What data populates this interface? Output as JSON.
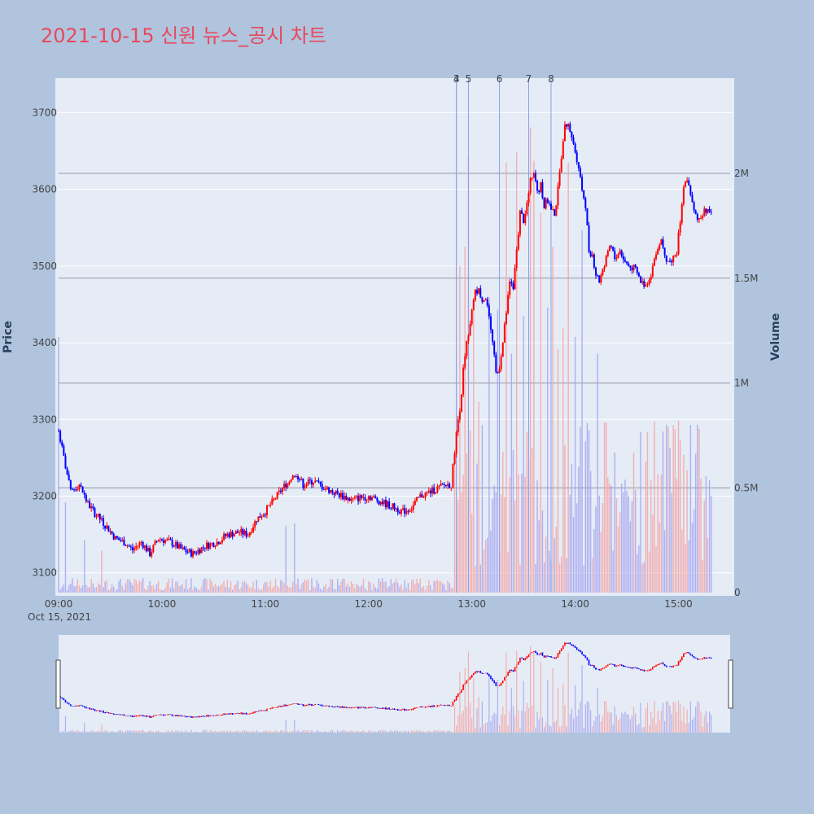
{
  "title": "2021-10-15 신원 뉴스_공시 차트",
  "colors": {
    "up": "#ff0000",
    "down": "#0000ff",
    "vol_up": "#f4a0a0",
    "vol_down": "#a0a0f0",
    "event": "#8aa0ea",
    "title": "#e8485c",
    "plot_bg": "#e5ecf6",
    "page_bg": "#b0c4de"
  },
  "chart_data": {
    "type": "candlestick",
    "title": "2021-10-15 신원 뉴스_공시 차트",
    "ylabel": "Price",
    "y2label": "Volume",
    "x_date_label": "Oct 15, 2021",
    "x_range": [
      "09:00",
      "15:30"
    ],
    "ylim": [
      3070,
      3745
    ],
    "y2lim": [
      0,
      2400000
    ],
    "x_ticks": [
      "09:00",
      "10:00",
      "11:00",
      "12:00",
      "13:00",
      "14:00",
      "15:00"
    ],
    "y_ticks": [
      3100,
      3200,
      3300,
      3400,
      3500,
      3600,
      3700
    ],
    "y2_ticks": [
      {
        "value": 0,
        "label": "0"
      },
      {
        "value": 500000,
        "label": "0.5M"
      },
      {
        "value": 1000000,
        "label": "1M"
      },
      {
        "value": 1500000,
        "label": "1.5M"
      },
      {
        "value": 2000000,
        "label": "2M"
      }
    ],
    "events": [
      {
        "label": "3",
        "time": "12:51"
      },
      {
        "label": "4",
        "time": "12:51"
      },
      {
        "label": "5",
        "time": "12:58"
      },
      {
        "label": "6",
        "time": "13:16"
      },
      {
        "label": "7",
        "time": "13:33"
      },
      {
        "label": "8",
        "time": "13:46"
      }
    ],
    "price_anchors": [
      [
        "09:00",
        3285
      ],
      [
        "09:03",
        3250
      ],
      [
        "09:07",
        3205
      ],
      [
        "09:12",
        3215
      ],
      [
        "09:17",
        3190
      ],
      [
        "09:22",
        3175
      ],
      [
        "09:28",
        3160
      ],
      [
        "09:33",
        3145
      ],
      [
        "09:38",
        3140
      ],
      [
        "09:43",
        3130
      ],
      [
        "09:48",
        3140
      ],
      [
        "09:53",
        3125
      ],
      [
        "09:58",
        3145
      ],
      [
        "10:05",
        3140
      ],
      [
        "10:12",
        3130
      ],
      [
        "10:18",
        3125
      ],
      [
        "10:25",
        3135
      ],
      [
        "10:32",
        3140
      ],
      [
        "10:38",
        3150
      ],
      [
        "10:45",
        3153
      ],
      [
        "10:50",
        3150
      ],
      [
        "10:55",
        3170
      ],
      [
        "11:00",
        3180
      ],
      [
        "11:05",
        3195
      ],
      [
        "11:10",
        3210
      ],
      [
        "11:15",
        3225
      ],
      [
        "11:18",
        3230
      ],
      [
        "11:22",
        3215
      ],
      [
        "11:28",
        3220
      ],
      [
        "11:35",
        3210
      ],
      [
        "11:40",
        3205
      ],
      [
        "11:45",
        3200
      ],
      [
        "11:50",
        3195
      ],
      [
        "11:55",
        3198
      ],
      [
        "12:00",
        3200
      ],
      [
        "12:05",
        3195
      ],
      [
        "12:10",
        3190
      ],
      [
        "12:15",
        3185
      ],
      [
        "12:20",
        3180
      ],
      [
        "12:25",
        3185
      ],
      [
        "12:30",
        3200
      ],
      [
        "12:35",
        3205
      ],
      [
        "12:40",
        3210
      ],
      [
        "12:45",
        3215
      ],
      [
        "12:48",
        3215
      ],
      [
        "12:50",
        3260
      ],
      [
        "12:52",
        3300
      ],
      [
        "12:54",
        3330
      ],
      [
        "12:55",
        3370
      ],
      [
        "12:57",
        3400
      ],
      [
        "13:00",
        3440
      ],
      [
        "13:02",
        3465
      ],
      [
        "13:04",
        3470
      ],
      [
        "13:06",
        3455
      ],
      [
        "13:08",
        3460
      ],
      [
        "13:10",
        3430
      ],
      [
        "13:12",
        3400
      ],
      [
        "13:14",
        3360
      ],
      [
        "13:16",
        3370
      ],
      [
        "13:18",
        3400
      ],
      [
        "13:20",
        3440
      ],
      [
        "13:22",
        3480
      ],
      [
        "13:24",
        3475
      ],
      [
        "13:26",
        3520
      ],
      [
        "13:28",
        3570
      ],
      [
        "13:30",
        3560
      ],
      [
        "13:32",
        3580
      ],
      [
        "13:34",
        3610
      ],
      [
        "13:36",
        3625
      ],
      [
        "13:38",
        3595
      ],
      [
        "13:40",
        3605
      ],
      [
        "13:42",
        3580
      ],
      [
        "13:44",
        3585
      ],
      [
        "13:46",
        3575
      ],
      [
        "13:48",
        3565
      ],
      [
        "13:50",
        3600
      ],
      [
        "13:52",
        3640
      ],
      [
        "13:54",
        3680
      ],
      [
        "13:56",
        3690
      ],
      [
        "13:58",
        3670
      ],
      [
        "14:00",
        3650
      ],
      [
        "14:02",
        3630
      ],
      [
        "14:04",
        3600
      ],
      [
        "14:06",
        3580
      ],
      [
        "14:08",
        3520
      ],
      [
        "14:10",
        3515
      ],
      [
        "14:12",
        3490
      ],
      [
        "14:14",
        3480
      ],
      [
        "14:17",
        3500
      ],
      [
        "14:20",
        3530
      ],
      [
        "14:23",
        3510
      ],
      [
        "14:26",
        3520
      ],
      [
        "14:29",
        3505
      ],
      [
        "14:32",
        3500
      ],
      [
        "14:35",
        3495
      ],
      [
        "14:38",
        3480
      ],
      [
        "14:41",
        3475
      ],
      [
        "14:44",
        3490
      ],
      [
        "14:47",
        3520
      ],
      [
        "14:50",
        3535
      ],
      [
        "14:53",
        3510
      ],
      [
        "14:56",
        3505
      ],
      [
        "14:59",
        3520
      ],
      [
        "15:01",
        3560
      ],
      [
        "15:03",
        3600
      ],
      [
        "15:05",
        3615
      ],
      [
        "15:07",
        3590
      ],
      [
        "15:09",
        3570
      ],
      [
        "15:11",
        3560
      ],
      [
        "15:13",
        3565
      ],
      [
        "15:15",
        3575
      ],
      [
        "15:17",
        3570
      ],
      [
        "15:19",
        3572
      ]
    ],
    "volume_spikes": [
      [
        "09:00",
        1220000
      ],
      [
        "09:04",
        430000
      ],
      [
        "09:15",
        250000
      ],
      [
        "09:25",
        200000
      ],
      [
        "11:12",
        320000
      ],
      [
        "11:17",
        330000
      ],
      [
        "12:53",
        1560000
      ],
      [
        "12:56",
        1650000
      ],
      [
        "12:58",
        2080000
      ],
      [
        "13:01",
        1390000
      ],
      [
        "13:04",
        910000
      ],
      [
        "13:10",
        1410000
      ],
      [
        "13:15",
        1350000
      ],
      [
        "13:20",
        2050000
      ],
      [
        "13:23",
        1140000
      ],
      [
        "13:26",
        2100000
      ],
      [
        "13:30",
        1320000
      ],
      [
        "13:34",
        2220000
      ],
      [
        "13:36",
        2060000
      ],
      [
        "13:40",
        1810000
      ],
      [
        "13:44",
        1360000
      ],
      [
        "13:47",
        1650000
      ],
      [
        "13:50",
        1160000
      ],
      [
        "13:53",
        1260000
      ],
      [
        "13:56",
        2050000
      ],
      [
        "14:00",
        1220000
      ],
      [
        "14:04",
        1730000
      ],
      [
        "14:13",
        1140000
      ],
      [
        "14:20",
        520000
      ],
      [
        "14:32",
        340000
      ],
      [
        "14:45",
        370000
      ],
      [
        "14:55",
        690000
      ],
      [
        "14:58",
        780000
      ],
      [
        "15:00",
        820000
      ],
      [
        "15:02",
        300000
      ],
      [
        "15:07",
        800000
      ]
    ]
  },
  "navigator": {
    "label": "range-slider"
  }
}
